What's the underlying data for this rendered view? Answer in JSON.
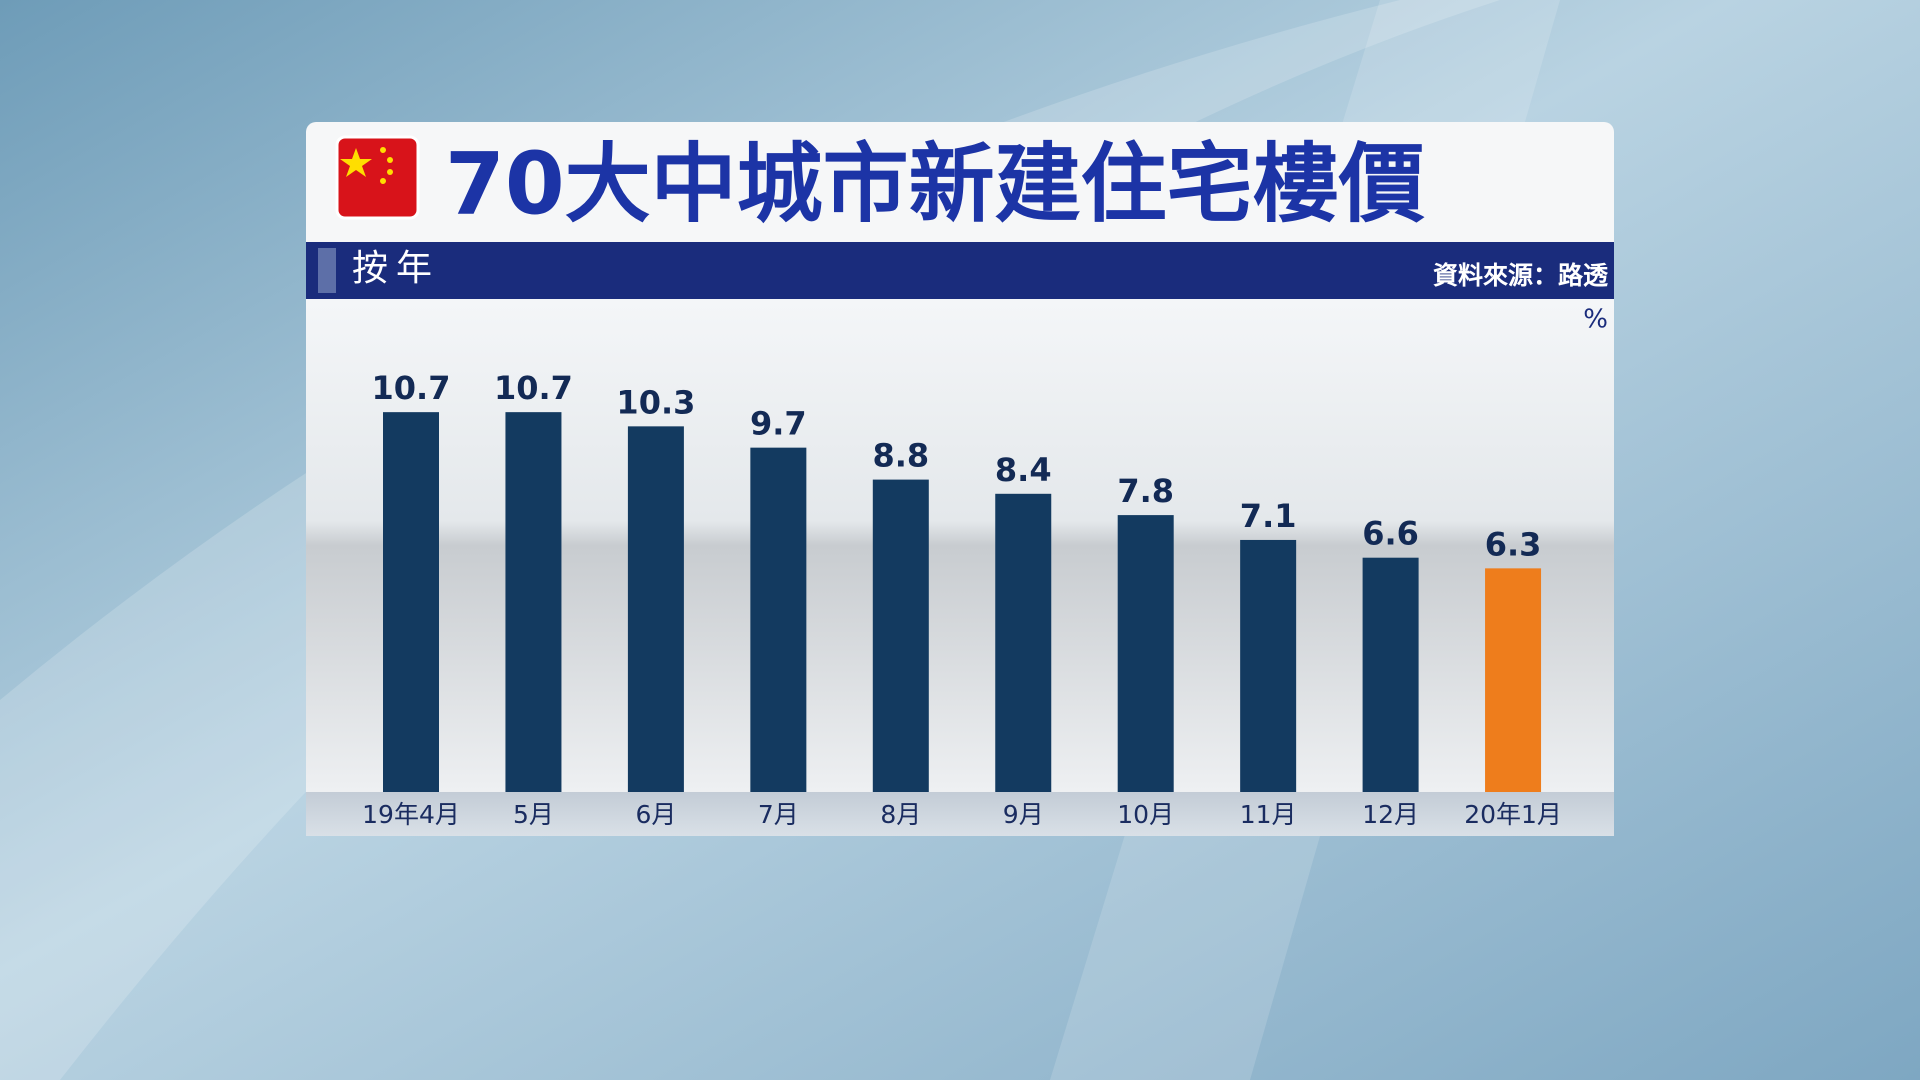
{
  "chart_data": {
    "type": "bar",
    "title": "70大中城市新建住宅樓價",
    "subtitle": "按年",
    "source": "資料來源：路透",
    "unit": "%",
    "categories": [
      "19年4月",
      "5月",
      "6月",
      "7月",
      "8月",
      "9月",
      "10月",
      "11月",
      "12月",
      "20年1月"
    ],
    "values": [
      10.7,
      10.7,
      10.3,
      9.7,
      8.8,
      8.4,
      7.8,
      7.1,
      6.6,
      6.3
    ],
    "colors": [
      "#133a60",
      "#133a60",
      "#133a60",
      "#133a60",
      "#133a60",
      "#133a60",
      "#133a60",
      "#133a60",
      "#133a60",
      "#ee7d1c"
    ]
  }
}
